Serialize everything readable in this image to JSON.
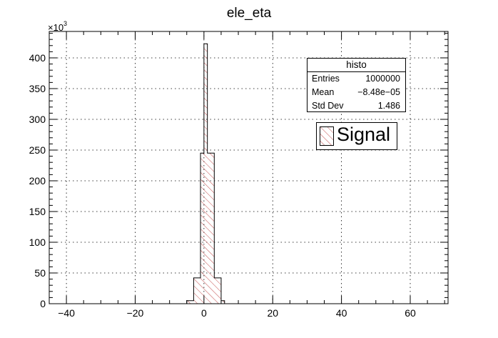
{
  "chart_data": {
    "type": "bar",
    "title": "ele_eta",
    "xlabel": "",
    "ylabel": "",
    "y_multiplier_label": "×10",
    "y_multiplier_exponent": "3",
    "xlim": [
      -45,
      71
    ],
    "ylim": [
      0,
      443
    ],
    "x_ticks": [
      -40,
      -20,
      0,
      20,
      40,
      60
    ],
    "y_ticks": [
      0,
      50,
      100,
      150,
      200,
      250,
      300,
      350,
      400
    ],
    "grid": true,
    "bin_width": 2,
    "bins": [
      {
        "x_low": -5,
        "x_high": -3,
        "value": 5
      },
      {
        "x_low": -3,
        "x_high": -1,
        "value": 42
      },
      {
        "x_low": -1,
        "x_high": 0,
        "value": 245
      },
      {
        "x_low": 0,
        "x_high": 1,
        "value": 423
      },
      {
        "x_low": 1,
        "x_high": 3,
        "value": 245
      },
      {
        "x_low": 3,
        "x_high": 5,
        "value": 42
      },
      {
        "x_low": 5,
        "x_high": 6,
        "value": 5
      }
    ],
    "series": [
      {
        "name": "Signal",
        "color": "#c44f4f",
        "fill": "hatched"
      }
    ],
    "legend_position": "top-right",
    "stats": {
      "title": "histo",
      "rows": [
        {
          "label": "Entries",
          "value": "1000000"
        },
        {
          "label": "Mean",
          "value": "−8.48e−05"
        },
        {
          "label": "Std Dev",
          "value": "1.486"
        }
      ]
    }
  }
}
